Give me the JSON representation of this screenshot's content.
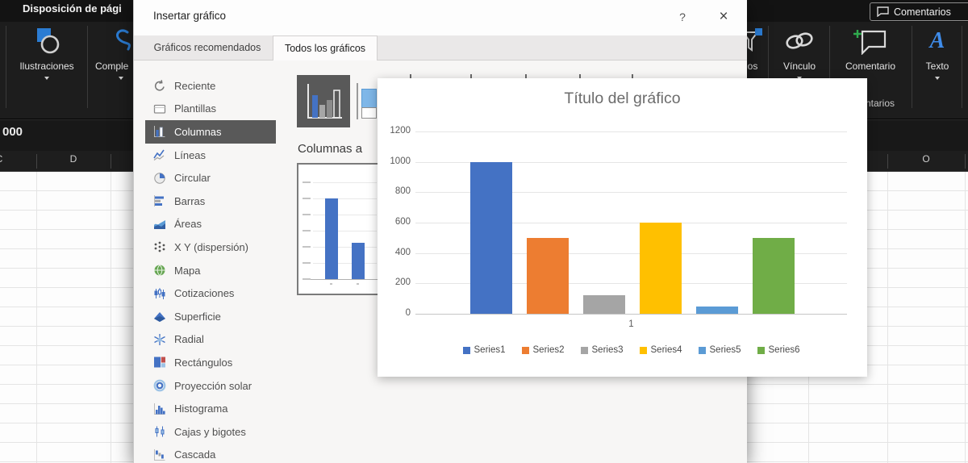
{
  "excel": {
    "active_tab": "Disposición de pági",
    "comments_button": "Comentarios",
    "ribbon": {
      "illustrations": "Ilustraciones",
      "addins": "Comple",
      "filters_partial": "os",
      "link": "Vínculo",
      "comment": "Comentario",
      "text": "Texto",
      "group_label_partial": "ntarios"
    },
    "formula_bar_value": "000",
    "column_headers": {
      "left_partial": "C",
      "left": "D",
      "right": "O"
    }
  },
  "dialog": {
    "title": "Insertar gráfico",
    "help_button": "?",
    "close_button": "×",
    "tabs": [
      {
        "label": "Gráficos recomendados",
        "active": false
      },
      {
        "label": "Todos los gráficos",
        "active": true
      }
    ],
    "sidebar": [
      {
        "icon": "recent-icon",
        "label": "Reciente"
      },
      {
        "icon": "templates-icon",
        "label": "Plantillas"
      },
      {
        "icon": "column-chart-icon",
        "label": "Columnas",
        "selected": true
      },
      {
        "icon": "line-chart-icon",
        "label": "Líneas"
      },
      {
        "icon": "pie-chart-icon",
        "label": "Circular"
      },
      {
        "icon": "bar-chart-icon",
        "label": "Barras"
      },
      {
        "icon": "area-chart-icon",
        "label": "Áreas"
      },
      {
        "icon": "scatter-chart-icon",
        "label": "X Y (dispersión)"
      },
      {
        "icon": "map-chart-icon",
        "label": "Mapa"
      },
      {
        "icon": "stock-chart-icon",
        "label": "Cotizaciones"
      },
      {
        "icon": "surface-chart-icon",
        "label": "Superficie"
      },
      {
        "icon": "radar-chart-icon",
        "label": "Radial"
      },
      {
        "icon": "treemap-chart-icon",
        "label": "Rectángulos"
      },
      {
        "icon": "sunburst-chart-icon",
        "label": "Proyección solar"
      },
      {
        "icon": "histogram-chart-icon",
        "label": "Histograma"
      },
      {
        "icon": "boxwhisker-chart-icon",
        "label": "Cajas y bigotes"
      },
      {
        "icon": "waterfall-chart-icon",
        "label": "Cascada"
      }
    ],
    "subtype_heading": "Columnas a"
  },
  "chart_data": [
    {
      "type": "bar",
      "title": "Título del gráfico",
      "categories": [
        "1"
      ],
      "series": [
        {
          "name": "Series1",
          "values": [
            1000
          ],
          "color": "#4472C4"
        },
        {
          "name": "Series2",
          "values": [
            500
          ],
          "color": "#ED7D31"
        },
        {
          "name": "Series3",
          "values": [
            120
          ],
          "color": "#A5A5A5"
        },
        {
          "name": "Series4",
          "values": [
            600
          ],
          "color": "#FFC000"
        },
        {
          "name": "Series5",
          "values": [
            50
          ],
          "color": "#5B9BD5"
        },
        {
          "name": "Series6",
          "values": [
            500
          ],
          "color": "#70AD47"
        }
      ],
      "ylim": [
        0,
        1200
      ],
      "ytick_step": 200,
      "grid": true,
      "legend_position": "bottom"
    },
    {
      "type": "bar",
      "title": "",
      "categories": [
        "1",
        "2"
      ],
      "series": [
        {
          "name": "Series1",
          "values": [
            1000,
            450
          ],
          "color": "#4472C4"
        }
      ],
      "ylim": [
        0,
        1200
      ]
    }
  ]
}
